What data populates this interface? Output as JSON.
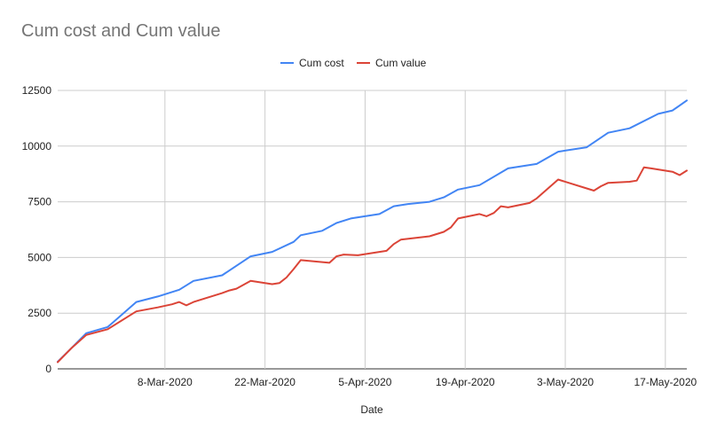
{
  "chart_data": {
    "type": "line",
    "title": "Cum cost and Cum value",
    "xlabel": "Date",
    "ylabel": "",
    "ylim": [
      0,
      12500
    ],
    "yticks": [
      0,
      2500,
      5000,
      7500,
      10000,
      12500
    ],
    "ytick_labels": [
      "0",
      "2500",
      "5000",
      "7500",
      "10000",
      "12500"
    ],
    "x_range": [
      "2020-02-22",
      "2020-05-20"
    ],
    "xticks": [
      "2020-03-08",
      "2020-03-22",
      "2020-04-05",
      "2020-04-19",
      "2020-05-03",
      "2020-05-17"
    ],
    "xtick_labels": [
      "8-Mar-2020",
      "22-Mar-2020",
      "5-Apr-2020",
      "19-Apr-2020",
      "3-May-2020",
      "17-May-2020"
    ],
    "grid": true,
    "legend_position": "top",
    "series": [
      {
        "name": "Cum cost",
        "color": "#4285f4",
        "points": [
          [
            "2020-02-22",
            320
          ],
          [
            "2020-02-24",
            950
          ],
          [
            "2020-02-26",
            1600
          ],
          [
            "2020-02-29",
            1880
          ],
          [
            "2020-03-04",
            3000
          ],
          [
            "2020-03-07",
            3250
          ],
          [
            "2020-03-10",
            3550
          ],
          [
            "2020-03-12",
            3950
          ],
          [
            "2020-03-16",
            4200
          ],
          [
            "2020-03-20",
            5050
          ],
          [
            "2020-03-23",
            5250
          ],
          [
            "2020-03-26",
            5700
          ],
          [
            "2020-03-27",
            6000
          ],
          [
            "2020-03-30",
            6200
          ],
          [
            "2020-04-01",
            6550
          ],
          [
            "2020-04-03",
            6750
          ],
          [
            "2020-04-05",
            6850
          ],
          [
            "2020-04-07",
            6950
          ],
          [
            "2020-04-09",
            7300
          ],
          [
            "2020-04-11",
            7400
          ],
          [
            "2020-04-14",
            7500
          ],
          [
            "2020-04-16",
            7700
          ],
          [
            "2020-04-18",
            8050
          ],
          [
            "2020-04-21",
            8250
          ],
          [
            "2020-04-25",
            9000
          ],
          [
            "2020-04-29",
            9200
          ],
          [
            "2020-05-02",
            9750
          ],
          [
            "2020-05-06",
            9950
          ],
          [
            "2020-05-09",
            10600
          ],
          [
            "2020-05-12",
            10800
          ],
          [
            "2020-05-16",
            11450
          ],
          [
            "2020-05-18",
            11600
          ],
          [
            "2020-05-20",
            12050
          ]
        ]
      },
      {
        "name": "Cum value",
        "color": "#db4437",
        "points": [
          [
            "2020-02-22",
            300
          ],
          [
            "2020-02-24",
            950
          ],
          [
            "2020-02-26",
            1520
          ],
          [
            "2020-02-29",
            1780
          ],
          [
            "2020-03-04",
            2580
          ],
          [
            "2020-03-07",
            2760
          ],
          [
            "2020-03-09",
            2900
          ],
          [
            "2020-03-10",
            3000
          ],
          [
            "2020-03-11",
            2850
          ],
          [
            "2020-03-12",
            3000
          ],
          [
            "2020-03-16",
            3400
          ],
          [
            "2020-03-17",
            3520
          ],
          [
            "2020-03-18",
            3600
          ],
          [
            "2020-03-20",
            3950
          ],
          [
            "2020-03-23",
            3800
          ],
          [
            "2020-03-24",
            3850
          ],
          [
            "2020-03-25",
            4100
          ],
          [
            "2020-03-26",
            4480
          ],
          [
            "2020-03-27",
            4880
          ],
          [
            "2020-03-31",
            4760
          ],
          [
            "2020-04-01",
            5050
          ],
          [
            "2020-04-02",
            5130
          ],
          [
            "2020-04-04",
            5100
          ],
          [
            "2020-04-06",
            5200
          ],
          [
            "2020-04-08",
            5300
          ],
          [
            "2020-04-09",
            5600
          ],
          [
            "2020-04-10",
            5800
          ],
          [
            "2020-04-14",
            5950
          ],
          [
            "2020-04-16",
            6150
          ],
          [
            "2020-04-17",
            6350
          ],
          [
            "2020-04-18",
            6750
          ],
          [
            "2020-04-21",
            6950
          ],
          [
            "2020-04-22",
            6850
          ],
          [
            "2020-04-23",
            7000
          ],
          [
            "2020-04-24",
            7300
          ],
          [
            "2020-04-25",
            7250
          ],
          [
            "2020-04-28",
            7450
          ],
          [
            "2020-04-29",
            7650
          ],
          [
            "2020-05-02",
            8500
          ],
          [
            "2020-05-06",
            8100
          ],
          [
            "2020-05-07",
            8000
          ],
          [
            "2020-05-08",
            8200
          ],
          [
            "2020-05-09",
            8350
          ],
          [
            "2020-05-12",
            8400
          ],
          [
            "2020-05-13",
            8450
          ],
          [
            "2020-05-14",
            9050
          ],
          [
            "2020-05-15",
            9000
          ],
          [
            "2020-05-18",
            8850
          ],
          [
            "2020-05-19",
            8700
          ],
          [
            "2020-05-20",
            8900
          ]
        ]
      }
    ]
  }
}
